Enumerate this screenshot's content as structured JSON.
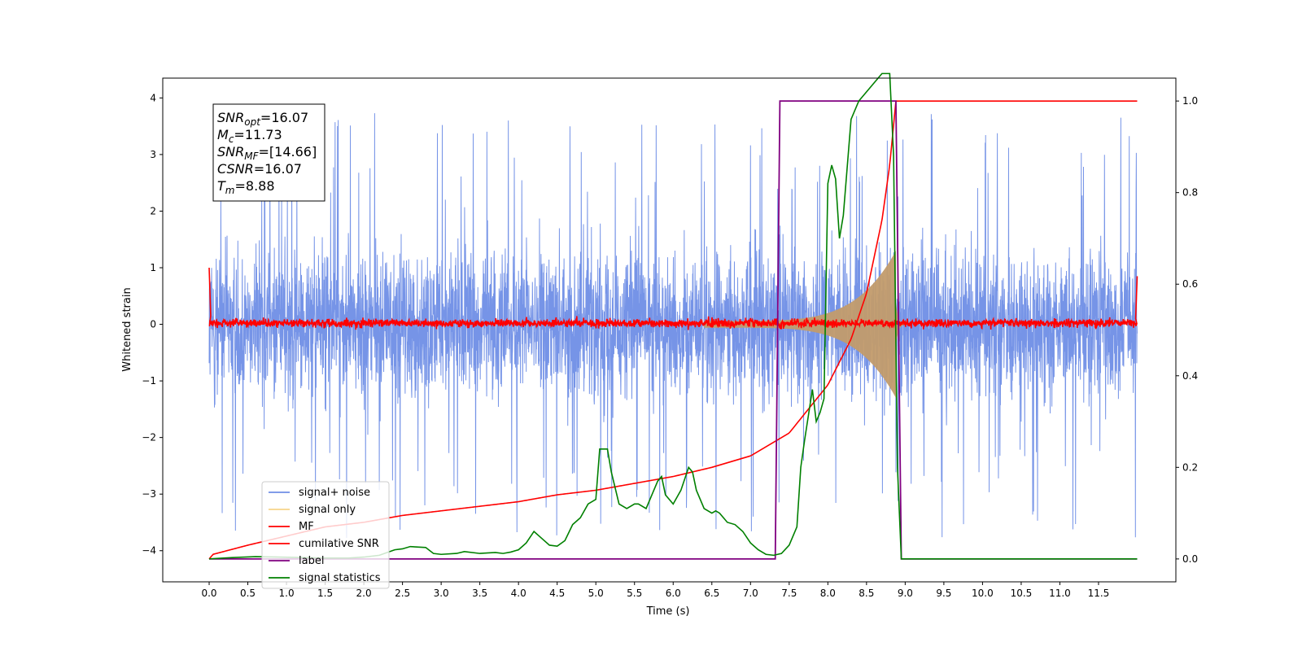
{
  "chart_data": {
    "type": "line",
    "xlabel": "Time (s)",
    "ylabel": "Whitened strain",
    "xlim": [
      -0.6,
      12.5
    ],
    "ylim": [
      -4.55,
      4.35
    ],
    "ylim_right": [
      -0.05,
      1.05
    ],
    "x_ticks": [
      "0.0",
      "0.5",
      "1.0",
      "1.5",
      "2.0",
      "2.5",
      "3.0",
      "3.5",
      "4.0",
      "4.5",
      "5.0",
      "5.5",
      "6.0",
      "6.5",
      "7.0",
      "7.5",
      "8.0",
      "8.5",
      "9.0",
      "9.5",
      "10.0",
      "10.5",
      "11.0",
      "11.5"
    ],
    "y_ticks": [
      "−4",
      "−3",
      "−2",
      "−1",
      "0",
      "1",
      "2",
      "3",
      "4"
    ],
    "y_ticks_right": [
      "0.0",
      "0.2",
      "0.4",
      "0.6",
      "0.8",
      "1.0"
    ],
    "grid": false,
    "legend_placement": "lower-left",
    "legend": [
      {
        "label": "signal+ noise",
        "color": "#6f8ee6"
      },
      {
        "label": "signal only",
        "color": "#f7d58a"
      },
      {
        "label": "MF",
        "color": "#ff0000"
      },
      {
        "label": "cumilative SNR",
        "color": "#ff0000"
      },
      {
        "label": "label",
        "color": "#800080"
      },
      {
        "label": "signal statistics",
        "color": "#008000"
      }
    ],
    "annotation": [
      {
        "name": "SNR",
        "sub": "opt",
        "value": "=16.07"
      },
      {
        "name": "M",
        "sub": "c",
        "value": "=11.73"
      },
      {
        "name": "SNR",
        "sub": "MF",
        "value": "=[14.66]"
      },
      {
        "name": "CSNR",
        "sub": "",
        "value": "=16.07"
      },
      {
        "name": "T",
        "sub": "m",
        "value": "=8.88"
      }
    ],
    "series": [
      {
        "name": "signal+ noise",
        "axis": "left",
        "color": "#6f8ee6",
        "t_range": [
          0,
          12
        ],
        "noise_band": [
          -2.0,
          2.2
        ],
        "peak_range": [
          -4.2,
          4.0
        ]
      },
      {
        "name": "signal only",
        "axis": "left",
        "color": "#c8a06e",
        "chirp_start": 6.4,
        "merger_time": 8.88,
        "end_amplitude": 1.3
      },
      {
        "name": "MF",
        "axis": "left",
        "color": "#ff0000",
        "t_range": [
          0,
          12
        ],
        "start_value": 1.0,
        "end_value": 0.85,
        "noise_band": [
          -0.1,
          0.15
        ]
      },
      {
        "name": "cumilative SNR",
        "axis": "right",
        "color": "#ff0000",
        "x": [
          0.0,
          0.05,
          0.5,
          1.0,
          1.5,
          2.0,
          2.5,
          3.0,
          3.5,
          4.0,
          4.5,
          5.0,
          5.5,
          6.0,
          6.5,
          7.0,
          7.5,
          8.0,
          8.3,
          8.5,
          8.7,
          8.8,
          8.88,
          12.0
        ],
        "y": [
          0.0,
          0.01,
          0.03,
          0.05,
          0.07,
          0.08,
          0.095,
          0.105,
          0.115,
          0.125,
          0.14,
          0.15,
          0.165,
          0.18,
          0.2,
          0.225,
          0.275,
          0.38,
          0.48,
          0.58,
          0.74,
          0.86,
          1.0,
          1.0
        ]
      },
      {
        "name": "label",
        "axis": "right",
        "color": "#800080",
        "x": [
          0.0,
          7.32,
          7.38,
          8.88,
          8.95,
          12.0
        ],
        "y": [
          0.0,
          0.0,
          1.0,
          1.0,
          0.0,
          0.0
        ]
      },
      {
        "name": "signal statistics",
        "axis": "right",
        "color": "#008000",
        "x": [
          0.0,
          0.3,
          0.6,
          0.9,
          1.2,
          1.5,
          1.8,
          2.0,
          2.2,
          2.4,
          2.5,
          2.6,
          2.8,
          2.9,
          3.0,
          3.2,
          3.3,
          3.5,
          3.7,
          3.8,
          3.9,
          4.0,
          4.1,
          4.2,
          4.3,
          4.4,
          4.5,
          4.6,
          4.7,
          4.8,
          4.9,
          5.0,
          5.05,
          5.15,
          5.2,
          5.3,
          5.4,
          5.5,
          5.55,
          5.65,
          5.7,
          5.8,
          5.85,
          5.9,
          6.0,
          6.1,
          6.2,
          6.25,
          6.3,
          6.4,
          6.5,
          6.55,
          6.6,
          6.7,
          6.8,
          6.9,
          7.0,
          7.1,
          7.2,
          7.3,
          7.4,
          7.5,
          7.6,
          7.65,
          7.7,
          7.8,
          7.85,
          7.9,
          7.95,
          8.0,
          8.05,
          8.1,
          8.15,
          8.2,
          8.3,
          8.4,
          8.5,
          8.6,
          8.7,
          8.8,
          8.85,
          8.9,
          8.95,
          12.0
        ],
        "y": [
          0.0,
          0.003,
          0.005,
          0.004,
          0.003,
          0.002,
          0.002,
          0.004,
          0.008,
          0.02,
          0.022,
          0.027,
          0.025,
          0.012,
          0.01,
          0.012,
          0.016,
          0.012,
          0.014,
          0.012,
          0.015,
          0.02,
          0.035,
          0.06,
          0.045,
          0.03,
          0.028,
          0.04,
          0.075,
          0.09,
          0.12,
          0.13,
          0.24,
          0.24,
          0.19,
          0.12,
          0.11,
          0.12,
          0.12,
          0.11,
          0.13,
          0.17,
          0.18,
          0.14,
          0.12,
          0.15,
          0.2,
          0.19,
          0.15,
          0.11,
          0.1,
          0.105,
          0.1,
          0.08,
          0.075,
          0.06,
          0.035,
          0.02,
          0.01,
          0.008,
          0.012,
          0.03,
          0.07,
          0.2,
          0.26,
          0.37,
          0.3,
          0.32,
          0.35,
          0.82,
          0.86,
          0.83,
          0.7,
          0.75,
          0.96,
          1.0,
          1.02,
          1.04,
          1.06,
          1.06,
          0.88,
          0.2,
          0.0,
          0.0
        ]
      }
    ]
  }
}
